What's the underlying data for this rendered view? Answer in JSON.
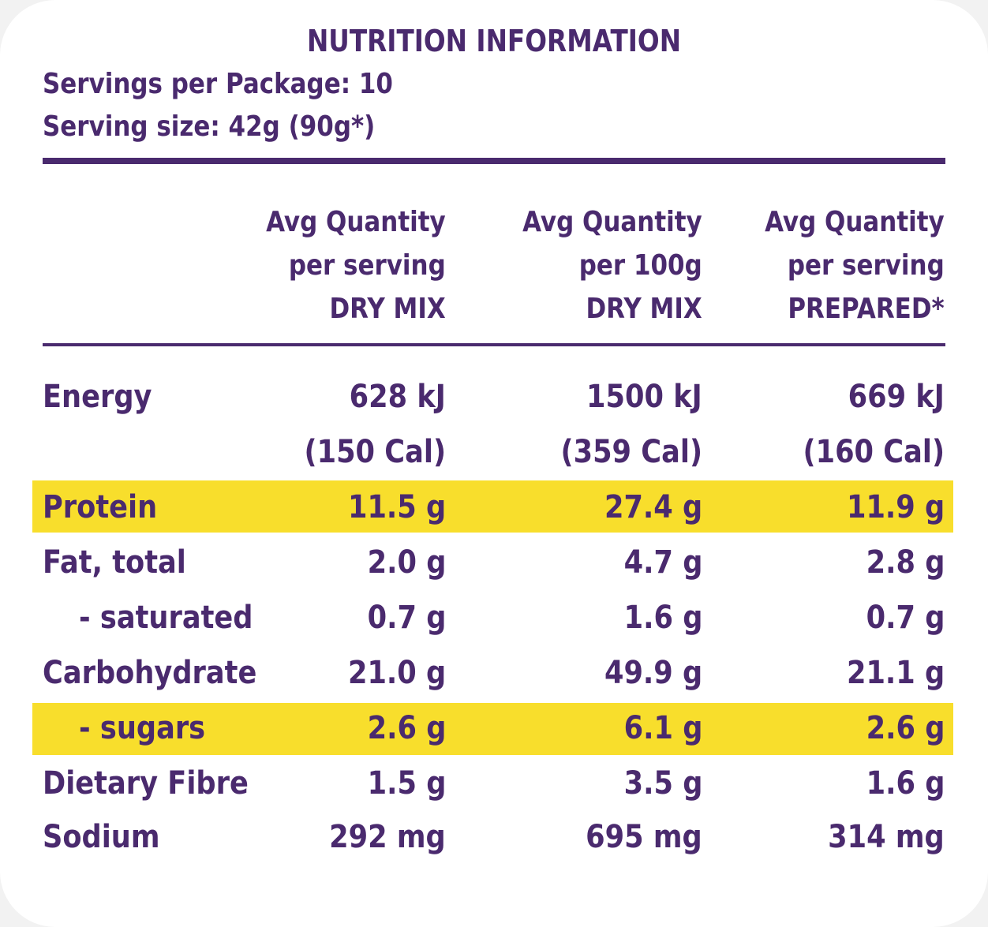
{
  "title": "NUTRITION INFORMATION",
  "servings_per_package": "Servings per Package: 10",
  "serving_size": "Serving size: 42g (90g*)",
  "columns": [
    {
      "line1": "Avg  Quantity",
      "line2": "per serving",
      "line3": "DRY MIX"
    },
    {
      "line1": "Avg  Quantity",
      "line2": "per 100g",
      "line3": "DRY MIX"
    },
    {
      "line1": "Avg  Quantity",
      "line2": "per serving",
      "line3": "PREPARED*"
    }
  ],
  "rows": [
    {
      "label": "Energy",
      "values": [
        "628 kJ",
        "1500 kJ",
        "669 kJ"
      ]
    },
    {
      "label": "",
      "values": [
        "(150 Cal)",
        "(359 Cal)",
        "(160 Cal)"
      ]
    },
    {
      "label": "Protein",
      "values": [
        "11.5 g",
        "27.4 g",
        "11.9 g"
      ],
      "highlight": true
    },
    {
      "label": "Fat, total",
      "values": [
        "2.0 g",
        "4.7 g",
        "2.8 g"
      ]
    },
    {
      "label": "- saturated",
      "values": [
        "0.7 g",
        "1.6 g",
        "0.7 g"
      ]
    },
    {
      "label": "Carbohydrate",
      "values": [
        "21.0 g",
        "49.9 g",
        "21.1 g"
      ]
    },
    {
      "label": "- sugars",
      "values": [
        "2.6 g",
        "6.1 g",
        "2.6 g"
      ],
      "highlight": true
    },
    {
      "label": "Dietary Fibre",
      "values": [
        "1.5 g",
        "3.5 g",
        "1.6 g"
      ]
    },
    {
      "label": "Sodium",
      "values": [
        "292 mg",
        "695 mg",
        "314 mg"
      ]
    }
  ],
  "colors": {
    "text": "#4a2a6e",
    "highlight": "#f8de2c",
    "background": "#ffffff"
  }
}
